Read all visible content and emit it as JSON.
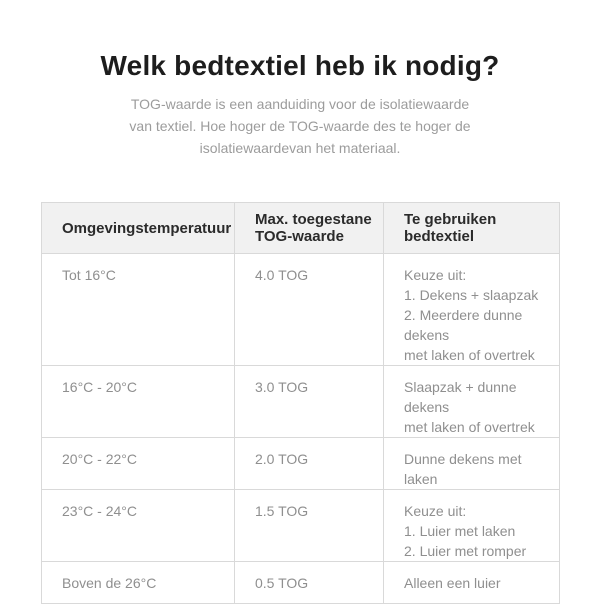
{
  "page": {
    "title": "Welk bedtextiel heb ik nodig?",
    "subtitle": "TOG-waarde is een aanduiding voor de isolatiewaarde\nvan textiel. Hoe hoger de TOG-waarde des te hoger de\nisolatiewaardevan het materiaal."
  },
  "table": {
    "headers": {
      "temperature": "Omgevingstemperatuur",
      "tog": "Max. toegestane\nTOG-waarde",
      "textile": "Te gebruiken\nbedtextiel"
    },
    "rows": [
      {
        "temperature": "Tot 16°C",
        "tog": "4.0 TOG",
        "textile": "Keuze uit:\n1. Dekens + slaapzak\n2. Meerdere dunne dekens\nmet laken of overtrek"
      },
      {
        "temperature": "16°C - 20°C",
        "tog": "3.0 TOG",
        "textile": "Slaapzak + dunne dekens\nmet laken of overtrek"
      },
      {
        "temperature": "20°C - 22°C",
        "tog": "2.0 TOG",
        "textile": "Dunne dekens met laken"
      },
      {
        "temperature": "23°C - 24°C",
        "tog": "1.5 TOG",
        "textile": "Keuze uit:\n1. Luier met laken\n2. Luier met romper"
      },
      {
        "temperature": "Boven de 26°C",
        "tog": "0.5 TOG",
        "textile": "Alleen een luier"
      }
    ]
  },
  "colors": {
    "background": "#ffffff",
    "title_text": "#1d1d1d",
    "subtitle_text": "#9c9c9c",
    "header_background": "#f1f1f1",
    "header_text": "#2b2b2b",
    "body_text": "#8f8f8f",
    "border": "#d9d9d9"
  }
}
